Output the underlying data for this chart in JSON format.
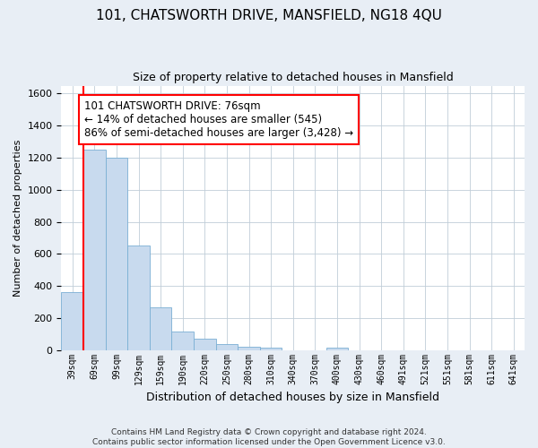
{
  "title": "101, CHATSWORTH DRIVE, MANSFIELD, NG18 4QU",
  "subtitle": "Size of property relative to detached houses in Mansfield",
  "xlabel": "Distribution of detached houses by size in Mansfield",
  "ylabel": "Number of detached properties",
  "bar_color": "#c8daee",
  "bar_edgecolor": "#7aafd4",
  "categories": [
    "39sqm",
    "69sqm",
    "99sqm",
    "129sqm",
    "159sqm",
    "190sqm",
    "220sqm",
    "250sqm",
    "280sqm",
    "310sqm",
    "340sqm",
    "370sqm",
    "400sqm",
    "430sqm",
    "460sqm",
    "491sqm",
    "521sqm",
    "551sqm",
    "581sqm",
    "611sqm",
    "641sqm"
  ],
  "values": [
    360,
    1250,
    1200,
    650,
    265,
    115,
    70,
    35,
    20,
    13,
    0,
    0,
    13,
    0,
    0,
    0,
    0,
    0,
    0,
    0,
    0
  ],
  "ylim": [
    0,
    1650
  ],
  "yticks": [
    0,
    200,
    400,
    600,
    800,
    1000,
    1200,
    1400,
    1600
  ],
  "annotation_line1": "101 CHATSWORTH DRIVE: 76sqm",
  "annotation_line2": "← 14% of detached houses are smaller (545)",
  "annotation_line3": "86% of semi-detached houses are larger (3,428) →",
  "vline_x": 0.5,
  "footer": "Contains HM Land Registry data © Crown copyright and database right 2024.\nContains public sector information licensed under the Open Government Licence v3.0.",
  "background_color": "#e8eef5",
  "plot_background": "#ffffff",
  "grid_color": "#c0cdd8",
  "title_fontsize": 11,
  "subtitle_fontsize": 9,
  "xlabel_fontsize": 9,
  "ylabel_fontsize": 8,
  "tick_fontsize": 7,
  "footer_fontsize": 6.5,
  "annotation_fontsize": 8.5
}
